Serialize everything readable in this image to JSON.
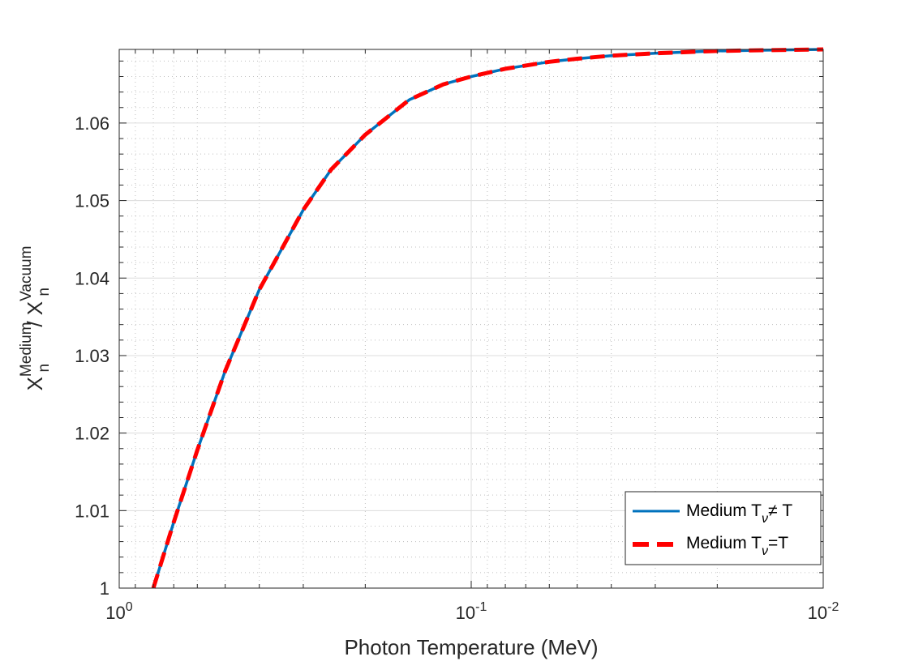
{
  "chart_data": {
    "type": "line",
    "xscale": "log",
    "xdir": "reverse",
    "xlim": [
      1,
      0.01
    ],
    "ylim": [
      1,
      1.0695
    ],
    "x_ticks": [
      {
        "value": 1,
        "base": "10",
        "exp": "0"
      },
      {
        "value": 0.1,
        "base": "10",
        "exp": "-1"
      },
      {
        "value": 0.01,
        "base": "10",
        "exp": "-2"
      }
    ],
    "y_ticks": [
      "1",
      "1.01",
      "1.02",
      "1.03",
      "1.04",
      "1.05",
      "1.06"
    ],
    "xlabel": "Photon Temperature (MeV)",
    "ylabel": {
      "x1": "X",
      "sub1": "n",
      "sup1": "Medium",
      "sep": " / ",
      "x2": "X",
      "sub2": "n",
      "sup2": "Vacuum"
    },
    "grid": true,
    "minor_grid": true,
    "legend_position": "bottom-right",
    "x": [
      0.8,
      0.7,
      0.6,
      0.5,
      0.4,
      0.3,
      0.25,
      0.2,
      0.15,
      0.12,
      0.1,
      0.08,
      0.06,
      0.05,
      0.04,
      0.03,
      0.02,
      0.015,
      0.01
    ],
    "series": [
      {
        "name": {
          "pre": "Medium T",
          "sub": "ν",
          "post": "≠ T"
        },
        "color": "#0072BD",
        "style": "solid",
        "values": [
          1.0,
          1.0085,
          1.0178,
          1.028,
          1.0385,
          1.0488,
          1.054,
          1.0585,
          1.063,
          1.065,
          1.066,
          1.067,
          1.0679,
          1.0683,
          1.0687,
          1.069,
          1.0693,
          1.0694,
          1.0695
        ]
      },
      {
        "name": {
          "pre": "Medium T",
          "sub": "ν",
          "post": "=T"
        },
        "color": "#FF0000",
        "style": "dashed",
        "values": [
          1.0,
          1.0085,
          1.0178,
          1.028,
          1.0385,
          1.0488,
          1.054,
          1.0585,
          1.063,
          1.065,
          1.066,
          1.067,
          1.0679,
          1.0683,
          1.0687,
          1.069,
          1.0693,
          1.0694,
          1.0695
        ]
      }
    ]
  }
}
